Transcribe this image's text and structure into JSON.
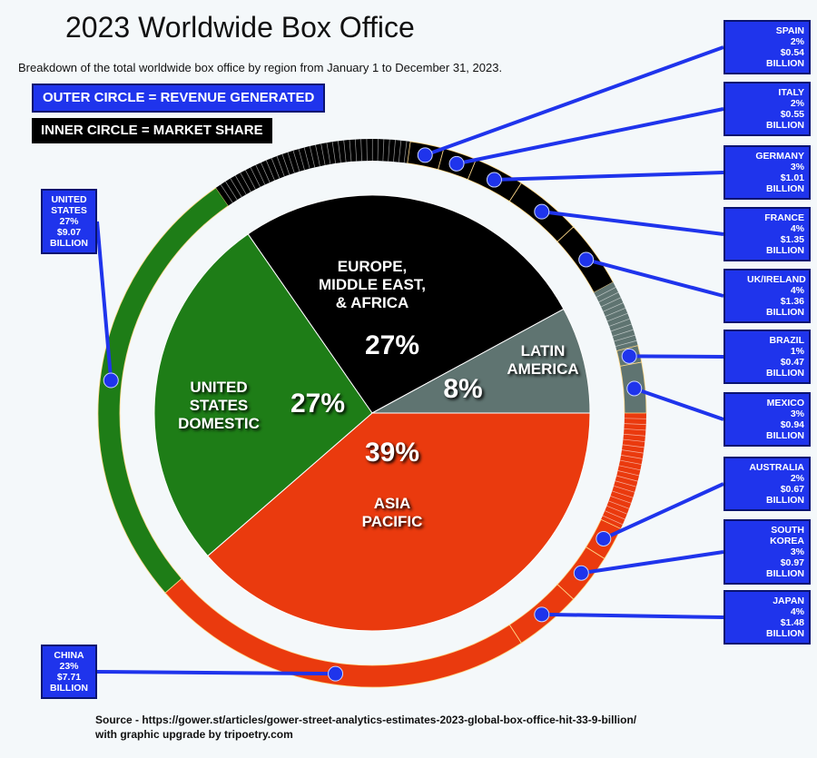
{
  "title": "2023 Worldwide Box Office",
  "subtitle": "Breakdown of the total worldwide box office by region from January 1 to December 31, 2023.",
  "legend": [
    "OUTER CIRCLE = REVENUE GENERATED",
    "INNER CIRCLE = MARKET SHARE"
  ],
  "source": [
    "Source - https://gower.st/articles/gower-street-analytics-estimates-2023-global-box-office-hit-33-9-billion/",
    "with graphic upgrade by tripoetry.com"
  ],
  "chart_data": {
    "type": "pie",
    "categories": [
      "ASIA PACIFIC",
      "UNITED STATES DOMESTIC",
      "EUROPE, MIDDLE EAST, & AFRICA",
      "LATIN AMERICA"
    ],
    "values": [
      39,
      27,
      27,
      8
    ],
    "value_labels": [
      "39%",
      "27%",
      "27%",
      "8%"
    ],
    "colors": [
      "#ea3a0e",
      "#1e7d17",
      "#000000",
      "#5f7471"
    ],
    "countries": [
      [
        {
          "name": "AUSTRALIA",
          "share": 2,
          "share_label": "2%",
          "revenue": 0.67,
          "revenue_label": "$0.67 BILLION"
        },
        {
          "name": "SOUTH KOREA",
          "share": 3,
          "share_label": "3%",
          "revenue": 0.97,
          "revenue_label": "$0.97 BILLION"
        },
        {
          "name": "JAPAN",
          "share": 4,
          "share_label": "4%",
          "revenue": 1.48,
          "revenue_label": "$1.48 BILLION"
        },
        {
          "name": "CHINA",
          "share": 23,
          "share_label": "23%",
          "revenue": 7.71,
          "revenue_label": "$7.71 BILLION"
        }
      ],
      [
        {
          "name": "UNITED STATES",
          "share": 27,
          "share_label": "27%",
          "revenue": 9.07,
          "revenue_label": "$9.07 BILLION"
        }
      ],
      [
        {
          "name": "SPAIN",
          "share": 2,
          "share_label": "2%",
          "revenue": 0.54,
          "revenue_label": "$0.54 BILLION"
        },
        {
          "name": "ITALY",
          "share": 2,
          "share_label": "2%",
          "revenue": 0.55,
          "revenue_label": "$0.55 BILLION"
        },
        {
          "name": "GERMANY",
          "share": 3,
          "share_label": "3%",
          "revenue": 1.01,
          "revenue_label": "$1.01 BILLION"
        },
        {
          "name": "FRANCE",
          "share": 4,
          "share_label": "4%",
          "revenue": 1.35,
          "revenue_label": "$1.35 BILLION"
        },
        {
          "name": "UK/IRELAND",
          "share": 4,
          "share_label": "4%",
          "revenue": 1.36,
          "revenue_label": "$1.36 BILLION"
        }
      ],
      [
        {
          "name": "BRAZIL",
          "share": 1,
          "share_label": "1%",
          "revenue": 0.47,
          "revenue_label": "$0.47 BILLION"
        },
        {
          "name": "MEXICO",
          "share": 3,
          "share_label": "3%",
          "revenue": 0.94,
          "revenue_label": "$0.94 BILLION"
        }
      ]
    ]
  }
}
